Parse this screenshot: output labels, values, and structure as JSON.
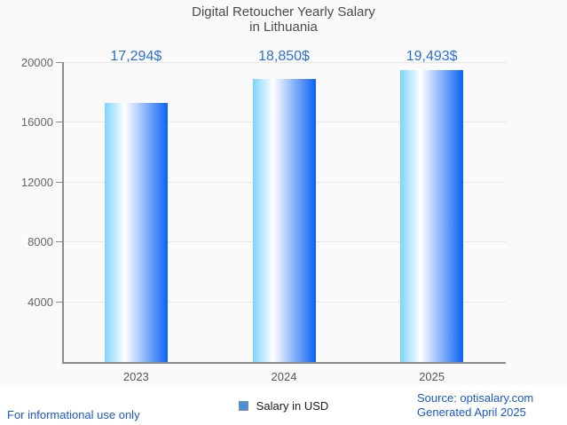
{
  "title": {
    "line1": "Digital Retoucher Yearly Salary",
    "line2": "in Lithuania"
  },
  "legend": {
    "label": "Salary in USD",
    "swatch_color": "#4d8fd6"
  },
  "footer": {
    "left_note": "For informational use only",
    "source": "Source: optisalary.com",
    "generated": "Generated April 2025"
  },
  "colors": {
    "background": "#fafafa",
    "footer_band": "#ffffff",
    "title_text": "#4a4a4a",
    "axis_line": "#8c8c8c",
    "gridline": "#e7e7e7",
    "tick_text": "#666666",
    "category_text": "#545454",
    "value_text": "#2b70da",
    "footer_text": "#1957d2",
    "bar_gradient_left": "#7ed3fc",
    "bar_gradient_mid": "#ffffff",
    "bar_gradient_right": "#0b63f5"
  },
  "chart_data": {
    "type": "bar",
    "title": "Digital Retoucher Yearly Salary in Lithuania",
    "categories": [
      "2023",
      "2024",
      "2025"
    ],
    "series": [
      {
        "name": "Salary in USD",
        "values": [
          17294,
          18850,
          19493
        ]
      }
    ],
    "value_labels": [
      "17,294$",
      "18,850$",
      "19,493$"
    ],
    "xlabel": "",
    "ylabel": "",
    "ylim": [
      0,
      20000
    ],
    "yticks": [
      4000,
      8000,
      12000,
      16000,
      20000
    ],
    "grid": "horizontal",
    "legend_position": "bottom",
    "bar_orientation": "vertical",
    "bar_gradient": "horizontal light-blue to white to blue"
  }
}
